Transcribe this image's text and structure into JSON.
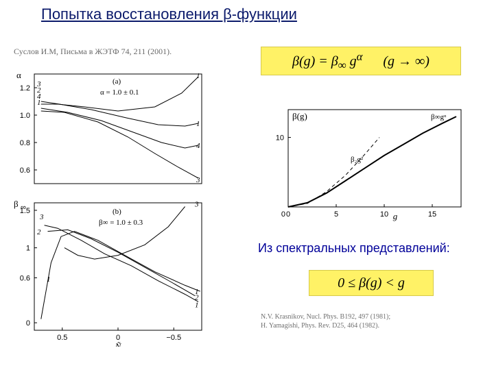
{
  "title": "Попытка восстановления    β-функции",
  "citation": "Суслов И.М, Письма в ЖЭТФ 74, 211 (2001).",
  "subtitle": "Из спектральных представлений:",
  "formula1_html": "β(g) = β<sub>∞</sub> g<sup>α</sup>&nbsp;&nbsp;&nbsp;&nbsp;&nbsp;&nbsp;(g → ∞)",
  "formula2_html": "0 ≤ β(g) &lt; g",
  "refs_line1": "N.V. Krasnikov, Nucl. Phys. B192, 497 (1981);",
  "refs_line2": "H. Yamagishi, Phys. Rev. D25, 464 (1982).",
  "plot_a": {
    "type": "line",
    "ylabel": "α",
    "panel_label": "(a)",
    "annot": "α = 1.0 ± 0.1",
    "xlim": [
      0,
      1
    ],
    "ylim": [
      0.5,
      1.3
    ],
    "yticks": [
      0.6,
      0.8,
      1.0,
      1.2
    ],
    "curve_labels_left": [
      "3",
      "2",
      "4",
      "1"
    ],
    "curve_labels_right": [
      "1",
      "1",
      "4",
      "3"
    ],
    "curves": [
      [
        [
          0.04,
          1.08
        ],
        [
          0.14,
          1.08
        ],
        [
          0.3,
          1.06
        ],
        [
          0.5,
          1.03
        ],
        [
          0.72,
          1.06
        ],
        [
          0.88,
          1.16
        ],
        [
          0.98,
          1.28
        ]
      ],
      [
        [
          0.04,
          1.1
        ],
        [
          0.15,
          1.08
        ],
        [
          0.34,
          1.04
        ],
        [
          0.55,
          0.98
        ],
        [
          0.74,
          0.93
        ],
        [
          0.9,
          0.92
        ],
        [
          0.98,
          0.94
        ]
      ],
      [
        [
          0.04,
          1.05
        ],
        [
          0.2,
          1.02
        ],
        [
          0.4,
          0.96
        ],
        [
          0.58,
          0.88
        ],
        [
          0.76,
          0.8
        ],
        [
          0.9,
          0.76
        ],
        [
          0.98,
          0.78
        ]
      ],
      [
        [
          0.04,
          1.03
        ],
        [
          0.18,
          1.02
        ],
        [
          0.38,
          0.95
        ],
        [
          0.56,
          0.84
        ],
        [
          0.72,
          0.72
        ],
        [
          0.86,
          0.62
        ],
        [
          0.98,
          0.54
        ]
      ]
    ],
    "colors": [
      "#000000",
      "#000000",
      "#000000",
      "#000000"
    ],
    "background_color": "#ffffff",
    "axis_color": "#000000"
  },
  "plot_b": {
    "type": "line",
    "ylabel": "β∞",
    "xlabel": "Ñ",
    "panel_label": "(b)",
    "annot": "β∞ = 1.0 ± 0.3",
    "xlim": [
      0,
      1
    ],
    "ylim": [
      -0.1,
      1.6
    ],
    "yticks": [
      0,
      0.6,
      1.0,
      1.5
    ],
    "xticks": [
      0.167,
      0.5,
      0.833
    ],
    "xticklabels": [
      "0.5",
      "0",
      "−0.5"
    ],
    "curve_labels_left": [
      "3",
      "2",
      "1"
    ],
    "curve_labels_right": [
      "3",
      "1",
      "2",
      "1"
    ],
    "curves": [
      [
        [
          0.04,
          0.05
        ],
        [
          0.1,
          0.8
        ],
        [
          0.16,
          1.15
        ],
        [
          0.24,
          1.22
        ],
        [
          0.38,
          1.1
        ],
        [
          0.54,
          0.9
        ],
        [
          0.72,
          0.68
        ],
        [
          0.9,
          0.5
        ],
        [
          0.99,
          0.42
        ]
      ],
      [
        [
          0.08,
          1.22
        ],
        [
          0.2,
          1.24
        ],
        [
          0.34,
          1.12
        ],
        [
          0.5,
          0.94
        ],
        [
          0.66,
          0.74
        ],
        [
          0.82,
          0.54
        ],
        [
          0.96,
          0.36
        ]
      ],
      [
        [
          0.06,
          1.3
        ],
        [
          0.14,
          1.26
        ],
        [
          0.28,
          1.1
        ],
        [
          0.42,
          0.92
        ],
        [
          0.58,
          0.76
        ],
        [
          0.74,
          0.56
        ],
        [
          0.9,
          0.38
        ],
        [
          0.98,
          0.28
        ]
      ],
      [
        [
          0.18,
          1.0
        ],
        [
          0.26,
          0.9
        ],
        [
          0.36,
          0.85
        ],
        [
          0.5,
          0.9
        ],
        [
          0.66,
          1.04
        ],
        [
          0.8,
          1.28
        ],
        [
          0.9,
          1.55
        ]
      ]
    ],
    "colors": [
      "#000000",
      "#000000",
      "#000000",
      "#000000"
    ],
    "background_color": "#ffffff",
    "axis_color": "#000000"
  },
  "plot_c": {
    "type": "line",
    "ylabel": "β(g)",
    "xlabel": "g",
    "annot1": "β₂g²",
    "annot2": "β∞gᵅ",
    "xlim": [
      0,
      18
    ],
    "ylim": [
      0,
      14
    ],
    "xticks": [
      0,
      5,
      10,
      15
    ],
    "yticks": [
      0,
      10
    ],
    "solid": [
      [
        0,
        0
      ],
      [
        2,
        0.6
      ],
      [
        4,
        2.0
      ],
      [
        6,
        3.8
      ],
      [
        8,
        5.6
      ],
      [
        10,
        7.4
      ],
      [
        12,
        9.0
      ],
      [
        14,
        10.6
      ],
      [
        16,
        12.0
      ],
      [
        17.5,
        13.0
      ]
    ],
    "dashed": [
      [
        0,
        0
      ],
      [
        2,
        0.5
      ],
      [
        4,
        2.2
      ],
      [
        6,
        4.6
      ],
      [
        8,
        7.6
      ],
      [
        9.5,
        10.0
      ]
    ],
    "solid_color": "#000000",
    "dashed_color": "#000000",
    "line_width_solid": 2,
    "line_width_dashed": 1,
    "background_color": "#ffffff",
    "axis_color": "#000000"
  }
}
